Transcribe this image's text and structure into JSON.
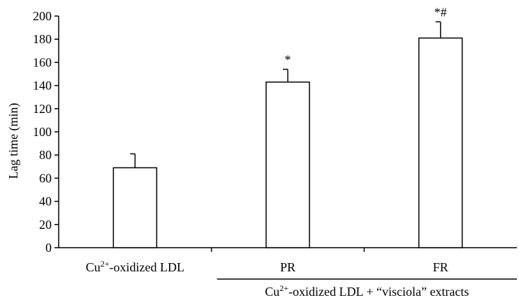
{
  "chart_data": {
    "type": "bar",
    "ylabel": "Lag time (min)",
    "xlabel": "",
    "title": "",
    "ylim": [
      0,
      200
    ],
    "yticks": [
      "0",
      "20",
      "40",
      "60",
      "80",
      "100",
      "120",
      "140",
      "160",
      "180",
      "200"
    ],
    "categories": [
      {
        "pre": "Cu",
        "sup": "2+",
        "post": "-oxidized LDL"
      },
      {
        "pre": "PR",
        "sup": "",
        "post": ""
      },
      {
        "pre": "FR",
        "sup": "",
        "post": ""
      }
    ],
    "values": [
      69,
      143,
      181
    ],
    "errors": [
      12,
      11,
      14
    ],
    "annotations": [
      "",
      "*",
      "*#"
    ],
    "group_label": {
      "pre": "Cu",
      "sup": "2+",
      "post": "-oxidized LDL + “visciola” extracts"
    },
    "colors": {
      "bar_fill": "#ffffff",
      "bar_stroke": "#000000",
      "axis": "#000000"
    }
  }
}
